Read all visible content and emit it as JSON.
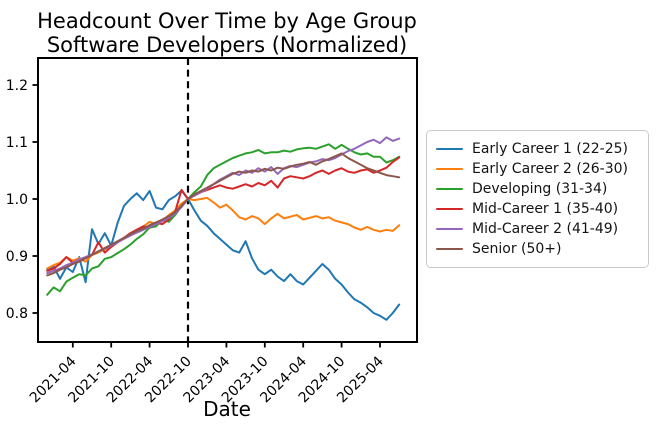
{
  "chart_data": {
    "type": "line",
    "title": "Headcount Over Time by Age Group",
    "subtitle": "Software Developers (Normalized)",
    "xlabel": "Date",
    "ylabel": "",
    "legend_position": "right",
    "grid": false,
    "reference_line_x": "2022-10",
    "reference_line_style": "black dashed vertical",
    "normalization_note": "all series equal 1.0 at the dashed reference line",
    "ylim": [
      0.749,
      1.247
    ],
    "y_ticks": [
      0.8,
      0.9,
      1.0,
      1.1,
      1.2
    ],
    "x_ticks": [
      "2021-04",
      "2021-10",
      "2022-04",
      "2022-10",
      "2023-04",
      "2023-10",
      "2024-04",
      "2024-10",
      "2025-04"
    ],
    "x_monthly": [
      "2020-12",
      "2021-01",
      "2021-02",
      "2021-03",
      "2021-04",
      "2021-05",
      "2021-06",
      "2021-07",
      "2021-08",
      "2021-09",
      "2021-10",
      "2021-11",
      "2021-12",
      "2022-01",
      "2022-02",
      "2022-03",
      "2022-04",
      "2022-05",
      "2022-06",
      "2022-07",
      "2022-08",
      "2022-09",
      "2022-10",
      "2022-11",
      "2022-12",
      "2023-01",
      "2023-02",
      "2023-03",
      "2023-04",
      "2023-05",
      "2023-06",
      "2023-07",
      "2023-08",
      "2023-09",
      "2023-10",
      "2023-11",
      "2023-12",
      "2024-01",
      "2024-02",
      "2024-03",
      "2024-04",
      "2024-05",
      "2024-06",
      "2024-07",
      "2024-08",
      "2024-09",
      "2024-10",
      "2024-11",
      "2024-12",
      "2025-01",
      "2025-02",
      "2025-03",
      "2025-04",
      "2025-05",
      "2025-06",
      "2025-07"
    ],
    "series": [
      {
        "name": "Early Career 1 (22-25)",
        "color": "#1f77b4",
        "values": [
          0.876,
          0.882,
          0.86,
          0.88,
          0.872,
          0.898,
          0.854,
          0.947,
          0.921,
          0.94,
          0.918,
          0.958,
          0.988,
          1.0,
          1.01,
          0.998,
          1.014,
          0.985,
          0.982,
          0.998,
          1.005,
          1.015,
          1.0,
          0.98,
          0.962,
          0.953,
          0.94,
          0.93,
          0.92,
          0.91,
          0.906,
          0.926,
          0.896,
          0.876,
          0.868,
          0.876,
          0.864,
          0.856,
          0.868,
          0.856,
          0.85,
          0.862,
          0.874,
          0.886,
          0.876,
          0.86,
          0.85,
          0.836,
          0.824,
          0.818,
          0.81,
          0.8,
          0.795,
          0.788,
          0.8,
          0.815
        ]
      },
      {
        "name": "Early Career 2 (26-30)",
        "color": "#ff7f0e",
        "values": [
          0.878,
          0.884,
          0.888,
          0.898,
          0.892,
          0.896,
          0.89,
          0.902,
          0.906,
          0.912,
          0.916,
          0.924,
          0.932,
          0.94,
          0.946,
          0.952,
          0.96,
          0.956,
          0.962,
          0.972,
          0.98,
          0.992,
          1.0,
          0.998,
          1.0,
          1.002,
          0.994,
          0.985,
          0.99,
          0.98,
          0.968,
          0.964,
          0.97,
          0.966,
          0.956,
          0.966,
          0.974,
          0.966,
          0.969,
          0.972,
          0.964,
          0.967,
          0.97,
          0.966,
          0.968,
          0.962,
          0.959,
          0.956,
          0.95,
          0.946,
          0.951,
          0.946,
          0.943,
          0.946,
          0.944,
          0.954
        ]
      },
      {
        "name": "Developing (31-34)",
        "color": "#2ca02c",
        "values": [
          0.832,
          0.845,
          0.838,
          0.855,
          0.862,
          0.868,
          0.866,
          0.878,
          0.882,
          0.895,
          0.898,
          0.905,
          0.912,
          0.92,
          0.93,
          0.938,
          0.95,
          0.952,
          0.964,
          0.96,
          0.972,
          0.988,
          1.0,
          1.012,
          1.022,
          1.042,
          1.054,
          1.06,
          1.066,
          1.072,
          1.076,
          1.08,
          1.082,
          1.086,
          1.08,
          1.082,
          1.082,
          1.085,
          1.083,
          1.087,
          1.089,
          1.09,
          1.088,
          1.092,
          1.096,
          1.088,
          1.095,
          1.088,
          1.082,
          1.078,
          1.08,
          1.074,
          1.074,
          1.064,
          1.068,
          1.074
        ]
      },
      {
        "name": "Mid-Career 1 (35-40)",
        "color": "#d62728",
        "values": [
          0.874,
          0.878,
          0.886,
          0.898,
          0.888,
          0.892,
          0.896,
          0.902,
          0.924,
          0.906,
          0.916,
          0.924,
          0.932,
          0.94,
          0.946,
          0.952,
          0.95,
          0.958,
          0.956,
          0.964,
          0.978,
          1.016,
          1.0,
          1.006,
          1.012,
          1.016,
          1.02,
          1.024,
          1.02,
          1.018,
          1.022,
          1.026,
          1.022,
          1.028,
          1.024,
          1.032,
          1.02,
          1.036,
          1.04,
          1.038,
          1.036,
          1.04,
          1.046,
          1.05,
          1.044,
          1.05,
          1.054,
          1.048,
          1.046,
          1.05,
          1.052,
          1.046,
          1.05,
          1.055,
          1.065,
          1.073
        ]
      },
      {
        "name": "Mid-Career 2 (41-49)",
        "color": "#9467bd",
        "values": [
          0.87,
          0.874,
          0.878,
          0.884,
          0.888,
          0.894,
          0.898,
          0.903,
          0.908,
          0.913,
          0.918,
          0.924,
          0.93,
          0.936,
          0.941,
          0.946,
          0.951,
          0.956,
          0.961,
          0.967,
          0.974,
          0.986,
          1.0,
          1.006,
          1.012,
          1.018,
          1.026,
          1.034,
          1.04,
          1.046,
          1.042,
          1.05,
          1.046,
          1.054,
          1.048,
          1.056,
          1.044,
          1.054,
          1.058,
          1.056,
          1.06,
          1.064,
          1.066,
          1.07,
          1.068,
          1.072,
          1.078,
          1.084,
          1.088,
          1.094,
          1.1,
          1.104,
          1.098,
          1.108,
          1.102,
          1.106
        ]
      },
      {
        "name": "Senior (50+)",
        "color": "#8c564b",
        "values": [
          0.866,
          0.87,
          0.876,
          0.88,
          0.886,
          0.89,
          0.896,
          0.902,
          0.908,
          0.914,
          0.92,
          0.926,
          0.932,
          0.938,
          0.944,
          0.948,
          0.954,
          0.959,
          0.964,
          0.97,
          0.977,
          0.988,
          1.0,
          1.008,
          1.014,
          1.02,
          1.026,
          1.032,
          1.038,
          1.044,
          1.048,
          1.046,
          1.05,
          1.048,
          1.053,
          1.05,
          1.055,
          1.053,
          1.057,
          1.06,
          1.062,
          1.065,
          1.06,
          1.066,
          1.07,
          1.075,
          1.08,
          1.072,
          1.066,
          1.06,
          1.054,
          1.05,
          1.046,
          1.042,
          1.04,
          1.038
        ]
      }
    ]
  }
}
